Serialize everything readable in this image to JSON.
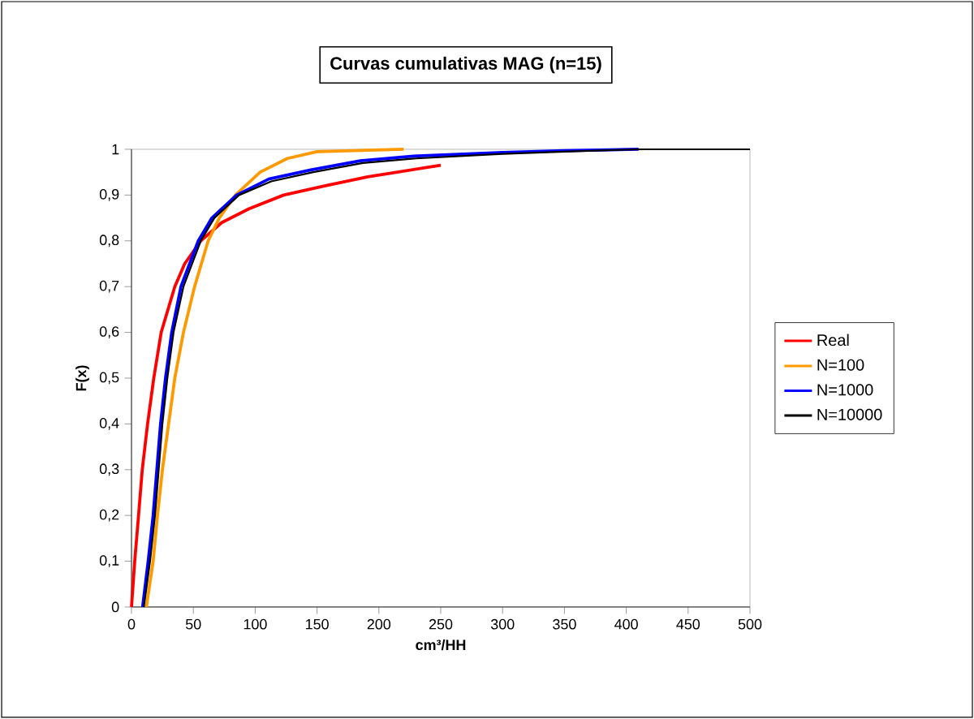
{
  "chart_data": {
    "type": "line",
    "title": "Curvas cumulativas MAG (n=15)",
    "xlabel": "cm³/HH",
    "ylabel": "F(x)",
    "xlim": [
      0,
      500
    ],
    "xticks": [
      0,
      50,
      100,
      150,
      200,
      250,
      300,
      350,
      400,
      450,
      500
    ],
    "ylim": [
      0,
      1
    ],
    "yticks": [
      0,
      {
        "value": 0.1,
        "label": "0,1"
      },
      {
        "value": 0.2,
        "label": "0,2"
      },
      {
        "value": 0.3,
        "label": "0,3"
      },
      {
        "value": 0.4,
        "label": "0,4"
      },
      {
        "value": 0.5,
        "label": "0,5"
      },
      {
        "value": 0.6,
        "label": "0,6"
      },
      {
        "value": 0.7,
        "label": "0,7"
      },
      {
        "value": 0.8,
        "label": "0,8"
      },
      {
        "value": 0.9,
        "label": "0,9"
      },
      1
    ],
    "legend": "right",
    "marker": "none",
    "line_style": "solid",
    "series": [
      {
        "name": "Real",
        "color": "#ff0000",
        "x": [
          0,
          2.6,
          5.7,
          8.7,
          13,
          18,
          24,
          35,
          43,
          56,
          73,
          95,
          123,
          156,
          191,
          250
        ],
        "values": [
          0,
          0.1,
          0.2,
          0.3,
          0.4,
          0.5,
          0.6,
          0.7,
          0.75,
          0.8,
          0.84,
          0.87,
          0.9,
          0.92,
          0.94,
          0.965
        ]
      },
      {
        "name": "N=100",
        "color": "#ff9900",
        "x": [
          12,
          17.5,
          21,
          25,
          30,
          35,
          42,
          51,
          62,
          71,
          84,
          104,
          126,
          150,
          220
        ],
        "values": [
          0,
          0.1,
          0.2,
          0.3,
          0.4,
          0.5,
          0.6,
          0.7,
          0.8,
          0.85,
          0.9,
          0.95,
          0.98,
          0.995,
          1
        ]
      },
      {
        "name": "N=1000",
        "color": "#0000ff",
        "x": [
          9,
          13.5,
          17.5,
          20.5,
          23.5,
          27.5,
          32.5,
          40,
          54,
          65,
          85,
          111,
          145,
          185,
          228,
          300,
          350,
          410
        ],
        "values": [
          0,
          0.1,
          0.2,
          0.3,
          0.4,
          0.5,
          0.6,
          0.7,
          0.8,
          0.85,
          0.9,
          0.935,
          0.955,
          0.975,
          0.985,
          0.993,
          0.997,
          1
        ]
      },
      {
        "name": "N=10000",
        "color": "#000000",
        "x": [
          10,
          15,
          19,
          22,
          25,
          29,
          34,
          42,
          56,
          67,
          87,
          113,
          147,
          187,
          230,
          300,
          350,
          410,
          500
        ],
        "values": [
          0,
          0.1,
          0.2,
          0.3,
          0.4,
          0.5,
          0.6,
          0.7,
          0.8,
          0.85,
          0.9,
          0.93,
          0.95,
          0.97,
          0.98,
          0.99,
          0.995,
          1,
          1
        ]
      }
    ]
  }
}
